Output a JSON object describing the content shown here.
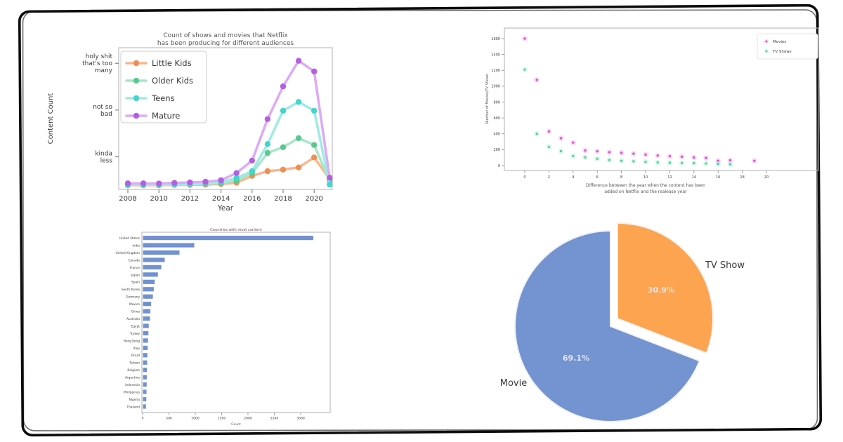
{
  "canvas": {
    "background": "#ffffff",
    "border_color": "#0c0c0c"
  },
  "chart_data": [
    {
      "id": "audience-line",
      "type": "line",
      "title": "Count of shows and movies that Netflix has been producing for different audiences",
      "title_lines": [
        "Count of shows and movies that Netflix",
        "has been producing for different audiences"
      ],
      "xlabel": "Year",
      "ylabel": "Content Count",
      "x": [
        2008,
        2009,
        2010,
        2011,
        2012,
        2013,
        2014,
        2015,
        2016,
        2017,
        2018,
        2019,
        2020,
        2021
      ],
      "xticks": [
        2008,
        2010,
        2012,
        2014,
        2016,
        2018,
        2020
      ],
      "yticks": [
        {
          "value": 800,
          "lines": [
            "holy shit",
            "that's too",
            "many"
          ]
        },
        {
          "value": 500,
          "lines": [
            "not so",
            "bad"
          ]
        },
        {
          "value": 200,
          "lines": [
            "kinda",
            "less"
          ]
        }
      ],
      "ylim": [
        0,
        900
      ],
      "legend_position": "upper-left",
      "series": [
        {
          "name": "Little Kids",
          "line_color": "#FAB68C",
          "marker_color": "#EF8F54",
          "values": [
            18,
            18,
            18,
            20,
            20,
            22,
            26,
            34,
            78,
            108,
            118,
            132,
            196,
            58
          ]
        },
        {
          "name": "Older Kids",
          "line_color": "#A8E6C8",
          "marker_color": "#5BC88F",
          "values": [
            20,
            20,
            20,
            22,
            24,
            27,
            32,
            48,
            95,
            225,
            262,
            320,
            276,
            46
          ]
        },
        {
          "name": "Teens",
          "line_color": "#9FEAE6",
          "marker_color": "#45D4CE",
          "values": [
            21,
            21,
            21,
            23,
            26,
            30,
            38,
            64,
            108,
            282,
            496,
            552,
            496,
            22
          ]
        },
        {
          "name": "Mature",
          "line_color": "#DDAAF5",
          "marker_color": "#B45FE0",
          "values": [
            30,
            30,
            29,
            33,
            36,
            40,
            50,
            96,
            176,
            442,
            652,
            816,
            748,
            66
          ]
        }
      ]
    },
    {
      "id": "delay-scatter",
      "type": "scatter",
      "xlabel": "Difference between the year when the content has been added on Netflix and the realease year",
      "xlabel_lines": [
        "Difference between the year when the content has been",
        "added on Netflix and the realease year"
      ],
      "ylabel": "Number of Movies/TV Shows",
      "xticks": [
        0,
        2,
        4,
        6,
        8,
        10,
        12,
        14,
        16,
        18,
        20
      ],
      "yticks": [
        0,
        200,
        400,
        600,
        800,
        1000,
        1200,
        1400,
        1600
      ],
      "ylim": [
        0,
        1700
      ],
      "legend_position": "upper-right",
      "series": [
        {
          "name": "Movies",
          "halo_color": "#F2A6E8",
          "core_color": "#D94FC6",
          "points": [
            [
              0,
              1600
            ],
            [
              1,
              1080
            ],
            [
              2,
              430
            ],
            [
              3,
              345
            ],
            [
              4,
              290
            ],
            [
              5,
              190
            ],
            [
              6,
              180
            ],
            [
              7,
              168
            ],
            [
              8,
              160
            ],
            [
              9,
              150
            ],
            [
              10,
              138
            ],
            [
              11,
              126
            ],
            [
              12,
              118
            ],
            [
              13,
              112
            ],
            [
              14,
              102
            ],
            [
              15,
              96
            ],
            [
              16,
              60
            ],
            [
              17,
              66
            ],
            [
              19,
              60
            ]
          ]
        },
        {
          "name": "TV Shows",
          "halo_color": "#A9EDD2",
          "core_color": "#4ECFA0",
          "points": [
            [
              0,
              1210
            ],
            [
              1,
              400
            ],
            [
              2,
              235
            ],
            [
              3,
              182
            ],
            [
              4,
              120
            ],
            [
              5,
              104
            ],
            [
              6,
              86
            ],
            [
              7,
              70
            ],
            [
              8,
              60
            ],
            [
              9,
              54
            ],
            [
              10,
              46
            ],
            [
              11,
              40
            ],
            [
              12,
              36
            ],
            [
              13,
              32
            ],
            [
              14,
              30
            ],
            [
              15,
              26
            ],
            [
              16,
              20
            ],
            [
              17,
              16
            ]
          ]
        }
      ]
    },
    {
      "id": "countries-bar",
      "type": "bar",
      "title": "Countries with most content",
      "xlabel": "Count",
      "bar_color": "#7191D0",
      "xticks": [
        0,
        500,
        1000,
        1500,
        2000,
        2500,
        3000
      ],
      "xlim": [
        0,
        3560
      ],
      "categories": [
        "United States",
        "India",
        "United Kingdom",
        "Canada",
        "France",
        "Japan",
        "Spain",
        "South Korea",
        "Germany",
        "Mexico",
        "China",
        "Australia",
        "Egypt",
        "Turkey",
        "Hong Kong",
        "Italy",
        "Brazil",
        "Taiwan",
        "Belgium",
        "Argentina",
        "Indonesia",
        "Philippines",
        "Nigeria",
        "Thailand"
      ],
      "values": [
        3240,
        980,
        700,
        420,
        355,
        290,
        230,
        212,
        195,
        162,
        148,
        140,
        117,
        110,
        102,
        96,
        91,
        86,
        82,
        79,
        77,
        74,
        70,
        64
      ]
    },
    {
      "id": "type-pie",
      "type": "pie",
      "slices": [
        {
          "label": "Movie",
          "pct": 69.1,
          "pct_label": "69.1%",
          "color": "#7493D1"
        },
        {
          "label": "TV Show",
          "pct": 30.9,
          "pct_label": "30.9%",
          "color": "#FCA450"
        }
      ]
    }
  ]
}
